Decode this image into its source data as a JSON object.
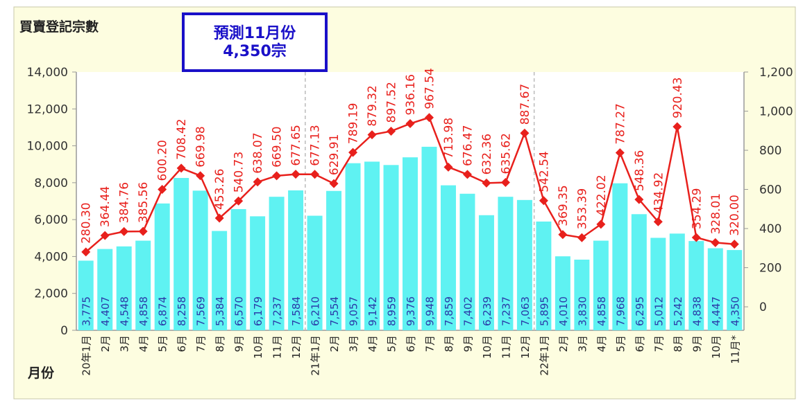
{
  "chart_data": {
    "type": "bar+line",
    "title": "買賣登記宗數",
    "xlabel": "月份",
    "annotation": [
      "預測11月份",
      "4,350宗"
    ],
    "categories": [
      "20年1月",
      "2月",
      "3月",
      "4月",
      "5月",
      "6月",
      "7月",
      "8月",
      "9月",
      "10月",
      "11月",
      "12月",
      "21年1月",
      "2月",
      "3月",
      "4月",
      "5月",
      "6月",
      "7月",
      "8月",
      "9月",
      "10月",
      "11月",
      "12月",
      "22年1月",
      "2月",
      "3月",
      "4月",
      "5月",
      "6月",
      "7月",
      "8月",
      "9月",
      "10月",
      "11月*"
    ],
    "series": [
      {
        "type": "bar",
        "axis": "left",
        "color": "#5ff2f2",
        "values": [
          3775,
          4407,
          4548,
          4858,
          6874,
          8258,
          7569,
          5384,
          6570,
          6179,
          7237,
          7584,
          6210,
          7554,
          9057,
          9142,
          8959,
          9376,
          9948,
          7859,
          7402,
          6239,
          7237,
          7063,
          5895,
          4010,
          3830,
          4858,
          7968,
          6295,
          5012,
          5242,
          4838,
          4447,
          4350
        ],
        "labels": [
          "3,775",
          "4,407",
          "4,548",
          "4,858",
          "6,874",
          "8,258",
          "7,569",
          "5,384",
          "6,570",
          "6,179",
          "7,237",
          "7,584",
          "6,210",
          "7,554",
          "9,057",
          "9,142",
          "8,959",
          "9,376",
          "9,948",
          "7,859",
          "7,402",
          "6,239",
          "7,237",
          "7,063",
          "5,895",
          "4,010",
          "3,830",
          "4,858",
          "7,968",
          "6,295",
          "5,012",
          "5,242",
          "4,838",
          "4,447",
          "4,350"
        ]
      },
      {
        "type": "line",
        "axis": "right",
        "color": "#e8201c",
        "values": [
          280.3,
          364.44,
          384.76,
          385.56,
          600.2,
          708.42,
          669.98,
          453.26,
          540.73,
          638.07,
          669.5,
          677.65,
          677.13,
          629.91,
          789.19,
          879.32,
          897.52,
          936.16,
          967.54,
          713.98,
          676.47,
          632.36,
          635.62,
          887.67,
          542.54,
          369.35,
          353.39,
          422.02,
          787.27,
          548.36,
          434.92,
          920.43,
          354.29,
          328.01,
          320.0
        ],
        "labels": [
          "280.30",
          "364.44",
          "384.76",
          "385.56",
          "600.20",
          "708.42",
          "669.98",
          "453.26",
          "540.73",
          "638.07",
          "669.50",
          "677.65",
          "677.13",
          "629.91",
          "789.19",
          "879.32",
          "897.52",
          "936.16",
          "967.54",
          "713.98",
          "676.47",
          "632.36",
          "635.62",
          "887.67",
          "542.54",
          "369.35",
          "353.39",
          "422.02",
          "787.27",
          "548.36",
          "434.92",
          "920.43",
          "354.29",
          "328.01",
          "320.00"
        ]
      }
    ],
    "y_left": {
      "ylim": [
        0,
        14000
      ],
      "ticks": [
        "0",
        "2,000",
        "4,000",
        "6,000",
        "8,000",
        "10,000",
        "12,000",
        "14,000"
      ]
    },
    "y_right": {
      "ylim": [
        -120,
        1200
      ],
      "ticks": [
        "0",
        "200",
        "400",
        "600",
        "800",
        "1,000",
        "1,200"
      ]
    },
    "year_dividers_after_index": [
      11,
      23
    ],
    "grid": false,
    "legend": "none",
    "background": "#fdfde0"
  }
}
